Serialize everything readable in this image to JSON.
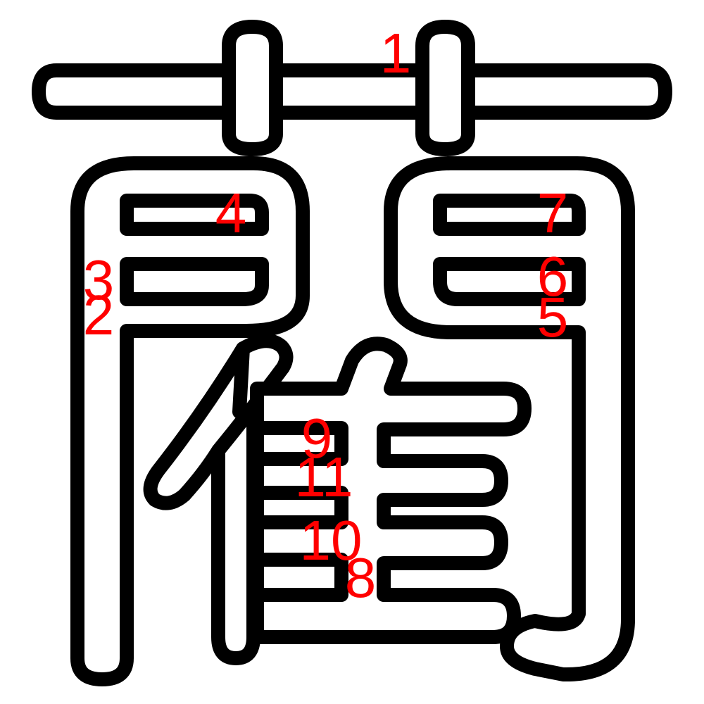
{
  "colors": {
    "background": "#ffffff",
    "outline": "#000000",
    "stroke_number": "#ff0000"
  },
  "stroke_numbers": [
    "1",
    "2",
    "3",
    "4",
    "5",
    "6",
    "7",
    "8",
    "9",
    "10",
    "11"
  ]
}
